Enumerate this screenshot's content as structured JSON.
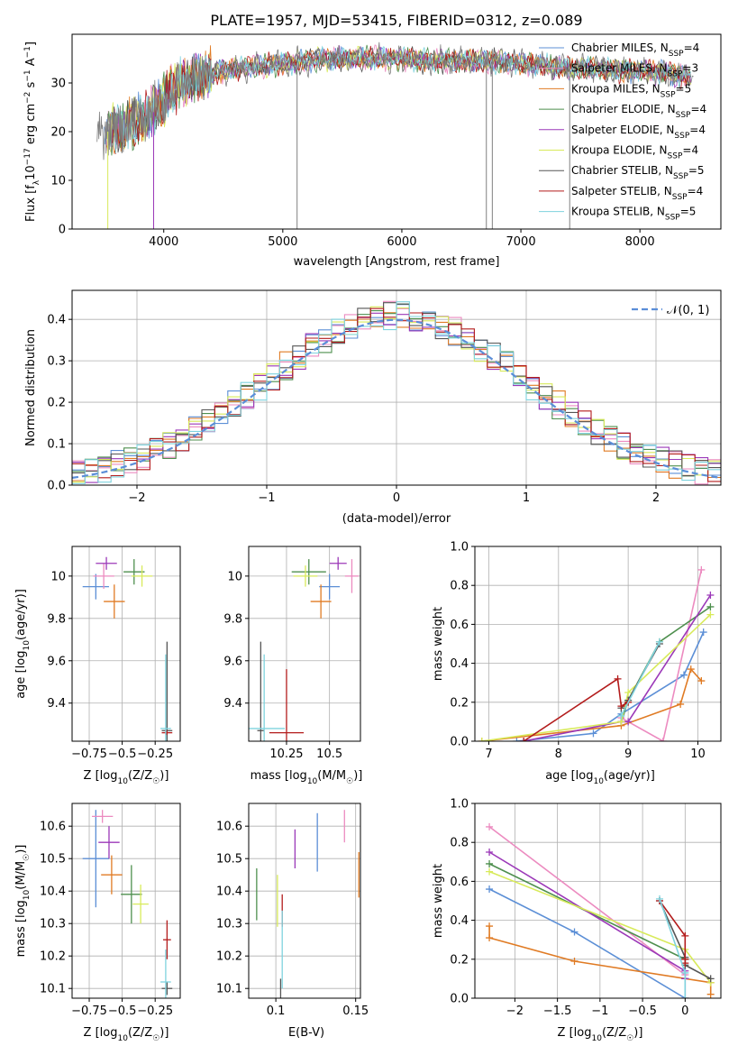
{
  "title": "PLATE=1957, MJD=53415, FIBERID=0312, z=0.089",
  "models": [
    {
      "name": "Chabrier MILES, N",
      "nssp": "=4",
      "color": "#5c8fd6"
    },
    {
      "name": "Salpeter MILES, N",
      "nssp": "=3",
      "color": "#ec8bc0"
    },
    {
      "name": "Kroupa MILES, N",
      "nssp": "=5",
      "color": "#e07b24"
    },
    {
      "name": "Chabrier ELODIE, N",
      "nssp": "=4",
      "color": "#4e8f4e"
    },
    {
      "name": "Salpeter ELODIE, N",
      "nssp": "=4",
      "color": "#9b38b8"
    },
    {
      "name": "Kroupa ELODIE, N",
      "nssp": "=4",
      "color": "#d8ea5a"
    },
    {
      "name": "Chabrier STELIB, N",
      "nssp": "=5",
      "color": "#555555"
    },
    {
      "name": "Salpeter STELIB, N",
      "nssp": "=4",
      "color": "#b31c1c"
    },
    {
      "name": "Kroupa STELIB, N",
      "nssp": "=5",
      "color": "#7fd3de"
    }
  ],
  "ssp_sub": "SSP",
  "spectrum_color": "#808080",
  "chart_data": [
    {
      "id": "spectrum",
      "type": "line",
      "xlabel": "wavelength [Angstrom, rest frame]",
      "ylabel": "Flux [f",
      "ylabel_sub": "λ",
      "ylabel_rest": "10",
      "ylabel_exp1": "−17",
      "ylabel_mid": " erg cm",
      "ylabel_exp2": "−2",
      "ylabel_mid2": " s",
      "ylabel_exp3": "−1",
      "ylabel_end": " A",
      "ylabel_exp4": "−1",
      "ylabel_close": "]",
      "xlim": [
        3230,
        8680
      ],
      "ylim": [
        0,
        40
      ],
      "xticks": [
        4000,
        5000,
        6000,
        7000,
        8000
      ],
      "yticks": [
        0,
        10,
        20,
        30
      ],
      "profile_x": [
        3450,
        3550,
        3650,
        3750,
        3850,
        3950,
        4050,
        4150,
        4250,
        4400,
        4600,
        4800,
        5000,
        5200,
        5400,
        5600,
        5800,
        6000,
        6200,
        6400,
        6600,
        6800,
        7000,
        7200,
        7400,
        7600,
        7800,
        8000,
        8200,
        8450
      ],
      "profile_y": [
        19,
        20,
        21,
        22,
        23,
        25,
        28,
        30,
        31,
        32,
        33,
        33.5,
        34,
        34.5,
        35,
        35,
        35,
        35,
        34.5,
        34.5,
        34.5,
        34.5,
        34,
        33.5,
        33,
        33,
        32.5,
        32.5,
        32,
        31
      ],
      "model_start_wavelength": 3500,
      "spikes": [
        {
          "x": 5120,
          "y0": 0,
          "y1": 34
        },
        {
          "x": 6710,
          "y0": 0,
          "y1": 36
        },
        {
          "x": 6760,
          "y0": 0,
          "y1": 37
        },
        {
          "x": 7410,
          "y0": 0,
          "y1": 33
        },
        {
          "x": 3915,
          "y0": 0,
          "y1": 24
        },
        {
          "x": 3530,
          "y0": 0,
          "y1": 20
        }
      ]
    },
    {
      "id": "residuals",
      "type": "histogram",
      "xlabel": "(data-model)/error",
      "ylabel": "Normed distribution",
      "xlim": [
        -2.5,
        2.5
      ],
      "ylim": [
        0,
        0.47
      ],
      "xticks": [
        -2,
        -1,
        0,
        1,
        2
      ],
      "yticks": [
        0.0,
        0.1,
        0.2,
        0.3,
        0.4
      ],
      "reference_label": "𝒩(0, 1)",
      "bin_width": 0.1
    },
    {
      "id": "age_vs_Z",
      "type": "scatter",
      "xlabel": "Z [log",
      "xlabel_sub": "10",
      "xlabel_rest": "(Z/Z",
      "xlabel_sub2": "☉",
      "xlabel_close": ")]",
      "ylabel": "age  [log",
      "ylabel_sub": "10",
      "ylabel_rest": "(age/yr)]",
      "xlim": [
        -0.88,
        -0.06
      ],
      "ylim": [
        9.22,
        10.14
      ],
      "xticks": [
        -0.75,
        -0.5,
        -0.25
      ],
      "yticks": [
        9.4,
        9.6,
        9.8,
        10.0
      ],
      "points": [
        {
          "x": -0.7,
          "y": 9.95,
          "xerr": 0.1,
          "yerr": 0.06
        },
        {
          "x": -0.64,
          "y": 10.0,
          "xerr": 0.08,
          "yerr": 0.06
        },
        {
          "x": -0.56,
          "y": 9.88,
          "xerr": 0.08,
          "yerr": 0.08
        },
        {
          "x": -0.41,
          "y": 10.02,
          "xerr": 0.08,
          "yerr": 0.06
        },
        {
          "x": -0.62,
          "y": 10.06,
          "xerr": 0.08,
          "yerr": 0.03
        },
        {
          "x": -0.35,
          "y": 10.0,
          "xerr": 0.08,
          "yerr": 0.05
        },
        {
          "x": -0.16,
          "y": 9.27,
          "xerr": 0.04,
          "yerr": 0.42
        },
        {
          "x": -0.16,
          "y": 9.26,
          "xerr": 0.04,
          "yerr": 0.01
        },
        {
          "x": -0.17,
          "y": 9.28,
          "xerr": 0.04,
          "yerr": 0.35
        }
      ]
    },
    {
      "id": "age_vs_mass",
      "type": "scatter",
      "xlabel": "mass [log",
      "xlabel_sub": "10",
      "xlabel_rest": "(M/M",
      "xlabel_sub2": "☉",
      "xlabel_close": ")]",
      "xlim": [
        10.03,
        10.68
      ],
      "ylim": [
        9.22,
        10.14
      ],
      "xticks": [
        10.25,
        10.5
      ],
      "yticks": [
        9.4,
        9.6,
        9.8,
        10.0
      ],
      "points": [
        {
          "x": 10.5,
          "y": 9.95,
          "xerr": 0.06,
          "yerr": 0.06
        },
        {
          "x": 10.63,
          "y": 10.0,
          "xerr": 0.04,
          "yerr": 0.08
        },
        {
          "x": 10.45,
          "y": 9.88,
          "xerr": 0.06,
          "yerr": 0.08
        },
        {
          "x": 10.38,
          "y": 10.02,
          "xerr": 0.1,
          "yerr": 0.06
        },
        {
          "x": 10.55,
          "y": 10.06,
          "xerr": 0.05,
          "yerr": 0.03
        },
        {
          "x": 10.36,
          "y": 10.0,
          "xerr": 0.07,
          "yerr": 0.05
        },
        {
          "x": 10.1,
          "y": 9.27,
          "xerr": 0.02,
          "yerr": 0.42
        },
        {
          "x": 10.25,
          "y": 9.26,
          "xerr": 0.1,
          "yerr": 0.3
        },
        {
          "x": 10.12,
          "y": 9.28,
          "xerr": 0.12,
          "yerr": 0.35
        }
      ]
    },
    {
      "id": "weight_vs_age",
      "type": "line",
      "xlabel": "age  [log",
      "xlabel_sub": "10",
      "xlabel_rest": "(age/yr)]",
      "ylabel": "mass weight",
      "xlim": [
        6.8,
        10.33
      ],
      "ylim": [
        0,
        1.0
      ],
      "xticks": [
        7,
        8,
        9,
        10
      ],
      "yticks": [
        0.0,
        0.2,
        0.4,
        0.6,
        0.8,
        1.0
      ],
      "series": [
        {
          "x": [
            7.4,
            8.5,
            8.9,
            9.8,
            10.08
          ],
          "y": [
            0.0,
            0.04,
            0.14,
            0.34,
            0.56
          ]
        },
        {
          "x": [
            8.9,
            9.5,
            10.05
          ],
          "y": [
            0.12,
            0.0,
            0.88
          ]
        },
        {
          "x": [
            6.9,
            8.9,
            9.75,
            9.9,
            10.05
          ],
          "y": [
            0.0,
            0.08,
            0.19,
            0.37,
            0.31
          ]
        },
        {
          "x": [
            8.9,
            9.0,
            9.45,
            10.18
          ],
          "y": [
            0.1,
            0.21,
            0.51,
            0.69
          ]
        },
        {
          "x": [
            7.5,
            8.9,
            9.0,
            10.18
          ],
          "y": [
            0.0,
            0.1,
            0.1,
            0.75
          ]
        },
        {
          "x": [
            6.9,
            8.9,
            9.0,
            10.18
          ],
          "y": [
            0.0,
            0.1,
            0.25,
            0.65
          ]
        },
        {
          "x": [
            8.9,
            9.0,
            9.45
          ],
          "y": [
            0.17,
            0.21,
            0.5
          ]
        },
        {
          "x": [
            7.5,
            8.85,
            8.9,
            9.0
          ],
          "y": [
            0.0,
            0.32,
            0.18,
            0.2
          ]
        },
        {
          "x": [
            8.9,
            9.45
          ],
          "y": [
            0.13,
            0.51
          ]
        }
      ]
    },
    {
      "id": "mass_vs_Z",
      "type": "scatter",
      "xlabel": "Z [log",
      "xlabel_sub": "10",
      "xlabel_rest": "(Z/Z",
      "xlabel_sub2": "☉",
      "xlabel_close": ")]",
      "ylabel": "mass [log",
      "ylabel_sub": "10",
      "ylabel_rest": "(M/M",
      "ylabel_sub2": "☉",
      "ylabel_close": ")]",
      "xlim": [
        -0.88,
        -0.06
      ],
      "ylim": [
        10.07,
        10.67
      ],
      "xticks": [
        -0.75,
        -0.5,
        -0.25
      ],
      "yticks": [
        10.1,
        10.2,
        10.3,
        10.4,
        10.5,
        10.6
      ],
      "points": [
        {
          "x": -0.7,
          "y": 10.5,
          "xerr": 0.1,
          "yerr": 0.15
        },
        {
          "x": -0.65,
          "y": 10.63,
          "xerr": 0.08,
          "yerr": 0.02
        },
        {
          "x": -0.58,
          "y": 10.45,
          "xerr": 0.08,
          "yerr": 0.06
        },
        {
          "x": -0.43,
          "y": 10.39,
          "xerr": 0.08,
          "yerr": 0.09
        },
        {
          "x": -0.6,
          "y": 10.55,
          "xerr": 0.08,
          "yerr": 0.05
        },
        {
          "x": -0.36,
          "y": 10.36,
          "xerr": 0.06,
          "yerr": 0.06
        },
        {
          "x": -0.16,
          "y": 10.1,
          "xerr": 0.04,
          "yerr": 0.02
        },
        {
          "x": -0.16,
          "y": 10.25,
          "xerr": 0.03,
          "yerr": 0.06
        },
        {
          "x": -0.17,
          "y": 10.12,
          "xerr": 0.04,
          "yerr": 0.1
        }
      ]
    },
    {
      "id": "mass_vs_ebv",
      "type": "scatter",
      "xlabel": "E(B-V)",
      "xlim": [
        0.083,
        0.153
      ],
      "ylim": [
        10.07,
        10.67
      ],
      "xticks": [
        0.1,
        0.15
      ],
      "yticks": [
        10.1,
        10.2,
        10.3,
        10.4,
        10.5,
        10.6
      ],
      "points": [
        {
          "x": 0.126,
          "y": 10.55,
          "xerr": 0,
          "yerr": 0.09
        },
        {
          "x": 0.143,
          "y": 10.6,
          "xerr": 0,
          "yerr": 0.05
        },
        {
          "x": 0.152,
          "y": 10.45,
          "xerr": 0,
          "yerr": 0.07
        },
        {
          "x": 0.088,
          "y": 10.39,
          "xerr": 0,
          "yerr": 0.08
        },
        {
          "x": 0.112,
          "y": 10.53,
          "xerr": 0,
          "yerr": 0.06
        },
        {
          "x": 0.101,
          "y": 10.37,
          "xerr": 0,
          "yerr": 0.08
        },
        {
          "x": 0.103,
          "y": 10.1,
          "xerr": 0,
          "yerr": 0.03
        },
        {
          "x": 0.104,
          "y": 10.34,
          "xerr": 0,
          "yerr": 0.05
        },
        {
          "x": 0.104,
          "y": 10.22,
          "xerr": 0,
          "yerr": 0.12
        }
      ]
    },
    {
      "id": "weight_vs_Z",
      "type": "line",
      "xlabel": "Z [log",
      "xlabel_sub": "10",
      "xlabel_rest": "(Z/Z",
      "xlabel_sub2": "☉",
      "xlabel_close": ")]",
      "ylabel": "mass weight",
      "xlim": [
        -2.47,
        0.42
      ],
      "ylim": [
        0,
        1.0
      ],
      "xticks": [
        -2.0,
        -1.5,
        -1.0,
        -0.5,
        0.0
      ],
      "yticks": [
        0.0,
        0.2,
        0.4,
        0.6,
        0.8,
        1.0
      ],
      "series": [
        {
          "x": [
            -2.3,
            -1.3,
            0.0
          ],
          "y": [
            0.56,
            0.34,
            0.0
          ]
        },
        {
          "x": [
            -2.3,
            0.0,
            0.0
          ],
          "y": [
            0.88,
            0.12,
            0.0
          ]
        },
        {
          "x": [
            -2.3,
            -2.3,
            -1.3,
            0.3,
            0.3
          ],
          "y": [
            0.37,
            0.31,
            0.19,
            0.08,
            0.02
          ]
        },
        {
          "x": [
            -2.3,
            0.0,
            0.0,
            0.0
          ],
          "y": [
            0.69,
            0.2,
            0.2,
            0.1
          ]
        },
        {
          "x": [
            -2.3,
            0.0,
            0.0,
            0.0
          ],
          "y": [
            0.75,
            0.14,
            0.1,
            0.1
          ]
        },
        {
          "x": [
            -2.3,
            0.0,
            0.3
          ],
          "y": [
            0.65,
            0.25,
            0.08
          ]
        },
        {
          "x": [
            -0.3,
            0.0,
            0.0,
            0.3
          ],
          "y": [
            0.5,
            0.21,
            0.17,
            0.1
          ]
        },
        {
          "x": [
            -0.3,
            0.0,
            0.0,
            0.0
          ],
          "y": [
            0.5,
            0.32,
            0.2,
            0.18
          ]
        },
        {
          "x": [
            -0.3,
            0.0,
            0.0
          ],
          "y": [
            0.51,
            0.13,
            0.0
          ]
        }
      ]
    }
  ]
}
